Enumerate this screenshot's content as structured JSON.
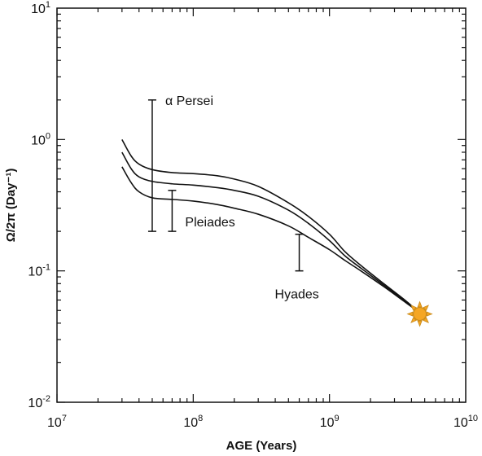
{
  "chart_data": {
    "type": "line",
    "xlabel": "AGE (Years)",
    "ylabel": "Ω/2π (Day⁻¹)",
    "x_scale": "log",
    "y_scale": "log",
    "xlim": [
      10000000,
      10000000000
    ],
    "ylim": [
      0.01,
      10
    ],
    "x_ticks": [
      {
        "value": 10000000,
        "base": "10",
        "exp": "7"
      },
      {
        "value": 100000000,
        "base": "10",
        "exp": "8"
      },
      {
        "value": 1000000000,
        "base": "10",
        "exp": "9"
      },
      {
        "value": 10000000000,
        "base": "10",
        "exp": "10"
      }
    ],
    "y_ticks": [
      {
        "value": 0.01,
        "base": "10",
        "exp": "-2"
      },
      {
        "value": 0.1,
        "base": "10",
        "exp": "-1"
      },
      {
        "value": 1,
        "base": "10",
        "exp": "0"
      },
      {
        "value": 10,
        "base": "10",
        "exp": "1"
      }
    ],
    "series": [
      {
        "x": [
          30000000,
          35000000,
          40000000,
          50000000,
          70000000,
          100000000,
          150000000,
          200000000,
          300000000,
          500000000,
          700000000,
          1000000000,
          1300000000,
          1700000000,
          2500000000,
          3500000000,
          4600000000
        ],
        "y": [
          1.0,
          0.75,
          0.65,
          0.59,
          0.56,
          0.55,
          0.53,
          0.5,
          0.44,
          0.33,
          0.26,
          0.19,
          0.14,
          0.11,
          0.08,
          0.061,
          0.048
        ]
      },
      {
        "x": [
          30000000,
          35000000,
          40000000,
          50000000,
          70000000,
          100000000,
          150000000,
          200000000,
          300000000,
          500000000,
          700000000,
          1000000000,
          1300000000,
          1700000000,
          2500000000,
          3500000000,
          4600000000
        ],
        "y": [
          0.8,
          0.6,
          0.52,
          0.48,
          0.46,
          0.45,
          0.43,
          0.41,
          0.37,
          0.29,
          0.23,
          0.17,
          0.13,
          0.105,
          0.078,
          0.06,
          0.048
        ]
      },
      {
        "x": [
          30000000,
          35000000,
          40000000,
          50000000,
          70000000,
          100000000,
          150000000,
          200000000,
          300000000,
          500000000,
          700000000,
          1000000000,
          1300000000,
          1700000000,
          2500000000,
          3500000000,
          4600000000
        ],
        "y": [
          0.62,
          0.47,
          0.4,
          0.36,
          0.35,
          0.34,
          0.32,
          0.3,
          0.27,
          0.22,
          0.18,
          0.145,
          0.12,
          0.1,
          0.076,
          0.059,
          0.048
        ]
      }
    ],
    "ranges": [
      {
        "label": "α Persei",
        "x": 50000000,
        "y_low": 0.2,
        "y_high": 2.0
      },
      {
        "label": "Pleiades",
        "x": 70000000,
        "y_low": 0.2,
        "y_high": 0.41
      },
      {
        "label": "Hyades",
        "x": 600000000,
        "y_low": 0.1,
        "y_high": 0.19
      }
    ],
    "sun": {
      "x": 4600000000,
      "y": 0.047,
      "color": "#f5a623",
      "ray_color": "#c98a1a"
    },
    "grid": false,
    "legend": "none"
  }
}
